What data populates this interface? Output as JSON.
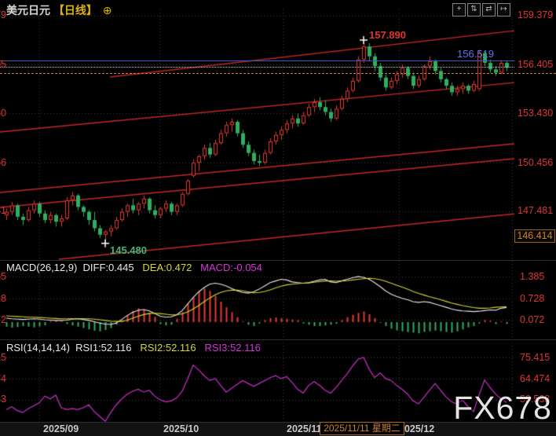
{
  "header": {
    "symbol": "美元日元",
    "period": "【日线】",
    "add_icon": "⊕"
  },
  "toolbar": {
    "icons": [
      {
        "name": "crosshair-icon",
        "glyph": "+"
      },
      {
        "name": "axis-zoom-vertical-icon",
        "glyph": "⇅"
      },
      {
        "name": "axis-zoom-horizontal-icon",
        "glyph": "⇄"
      },
      {
        "name": "go-to-latest-icon",
        "glyph": "↦"
      }
    ]
  },
  "price_pane": {
    "axis_labels": [
      "159.379",
      "156.405",
      "153.430",
      "150.456",
      "147.481"
    ],
    "bottom_axis_box": "146.414",
    "high_label": "157.890",
    "low_label": "145.480",
    "hline_label": "156.519"
  },
  "macd_pane": {
    "title": "MACD(26,12,9)",
    "diff_label": "DIFF:0.445",
    "dea_label": "DEA:0.472",
    "macd_label": "MACD:-0.054",
    "axis_labels": [
      "1.385",
      "0.728",
      "0.072"
    ]
  },
  "rsi_pane": {
    "title": "RSI(14,14,14)",
    "rsi1_label": "RSI1:52.116",
    "rsi2_label": "RSI2:52.116",
    "rsi3_label": "RSI3:52.116",
    "axis_labels": [
      "75.415",
      "64.474",
      "53.533"
    ]
  },
  "x_axis": {
    "labels": [
      "2025/09",
      "2025/10",
      "2025/11",
      "2025/12"
    ],
    "date_box": "2025/11/11 星期二"
  },
  "watermark": "FX678",
  "colors": {
    "up": "#e33b32",
    "down": "#2fae60",
    "trendline": "#c92727",
    "axis_text": "#e03434",
    "hline_blue": "#3a57cc",
    "current_orange": "#cd7f28",
    "diff_line": "#e8e8e8",
    "dea_line": "#d6d631",
    "rsi_line": "#cf2ecf"
  },
  "chart_data": [
    {
      "type": "candlestick",
      "symbol": "USD/JPY",
      "interval": "daily",
      "x_month_labels": [
        "2025/09",
        "2025/10",
        "2025/11",
        "2025/12"
      ],
      "high_annotation": 157.89,
      "low_annotation": 145.48,
      "horizontal_line": 156.519,
      "axis_values": [
        159.379,
        156.405,
        153.43,
        150.456,
        147.481,
        146.414
      ],
      "ohlc": [
        [
          147.2,
          147.6,
          146.9,
          147.4
        ],
        [
          147.4,
          148.0,
          147.2,
          147.8
        ],
        [
          147.8,
          147.9,
          146.9,
          147.1
        ],
        [
          147.1,
          147.3,
          146.6,
          146.9
        ],
        [
          146.9,
          147.7,
          146.8,
          147.5
        ],
        [
          147.5,
          148.1,
          147.3,
          147.9
        ],
        [
          147.9,
          148.0,
          147.1,
          147.3
        ],
        [
          147.3,
          147.5,
          146.7,
          146.9
        ],
        [
          146.9,
          147.4,
          146.7,
          147.2
        ],
        [
          147.2,
          147.3,
          146.5,
          146.8
        ],
        [
          146.8,
          147.2,
          146.5,
          147.0
        ],
        [
          147.0,
          148.3,
          146.9,
          148.1
        ],
        [
          148.1,
          148.6,
          147.8,
          148.4
        ],
        [
          148.4,
          148.5,
          147.5,
          147.7
        ],
        [
          147.7,
          147.8,
          147.1,
          147.4
        ],
        [
          147.4,
          147.5,
          146.6,
          146.9
        ],
        [
          146.9,
          147.4,
          146.2,
          146.4
        ],
        [
          146.4,
          146.6,
          145.8,
          146.0
        ],
        [
          146.0,
          146.3,
          145.48,
          146.2
        ],
        [
          146.2,
          146.6,
          145.9,
          146.4
        ],
        [
          146.4,
          147.1,
          146.3,
          146.9
        ],
        [
          146.9,
          147.6,
          146.8,
          147.4
        ],
        [
          147.4,
          147.9,
          147.1,
          147.8
        ],
        [
          147.8,
          148.2,
          147.3,
          147.5
        ],
        [
          147.5,
          148.0,
          147.2,
          147.9
        ],
        [
          147.9,
          148.4,
          147.6,
          148.2
        ],
        [
          148.2,
          148.3,
          147.3,
          147.5
        ],
        [
          147.5,
          147.8,
          147.0,
          147.2
        ],
        [
          147.2,
          147.7,
          147.0,
          147.6
        ],
        [
          147.6,
          148.1,
          147.4,
          147.9
        ],
        [
          147.9,
          148.0,
          147.2,
          147.4
        ],
        [
          147.4,
          147.9,
          147.2,
          147.8
        ],
        [
          147.8,
          148.6,
          147.7,
          148.5
        ],
        [
          148.5,
          149.4,
          148.4,
          149.3
        ],
        [
          149.6,
          150.6,
          149.5,
          150.4
        ],
        [
          150.4,
          150.9,
          149.9,
          150.8
        ],
        [
          150.8,
          151.5,
          150.6,
          151.3
        ],
        [
          151.3,
          151.6,
          150.7,
          150.9
        ],
        [
          150.9,
          151.8,
          150.8,
          151.6
        ],
        [
          151.6,
          152.4,
          151.5,
          152.2
        ],
        [
          152.2,
          152.9,
          152.0,
          152.7
        ],
        [
          152.7,
          153.1,
          152.3,
          152.9
        ],
        [
          152.9,
          153.0,
          152.0,
          152.2
        ],
        [
          152.2,
          152.4,
          151.3,
          151.5
        ],
        [
          151.5,
          151.7,
          150.8,
          151.0
        ],
        [
          151.0,
          151.2,
          150.3,
          150.5
        ],
        [
          150.5,
          150.9,
          150.2,
          150.4
        ],
        [
          150.4,
          151.2,
          150.3,
          151.0
        ],
        [
          151.0,
          151.9,
          150.9,
          151.7
        ],
        [
          151.7,
          152.3,
          151.5,
          152.1
        ],
        [
          152.1,
          152.6,
          151.8,
          152.4
        ],
        [
          152.4,
          153.0,
          152.2,
          152.8
        ],
        [
          152.8,
          153.3,
          152.5,
          153.1
        ],
        [
          153.1,
          153.4,
          152.6,
          152.8
        ],
        [
          152.8,
          153.5,
          152.7,
          153.3
        ],
        [
          153.3,
          154.0,
          153.2,
          153.8
        ],
        [
          153.8,
          154.3,
          153.5,
          154.1
        ],
        [
          154.1,
          154.4,
          153.6,
          153.8
        ],
        [
          153.8,
          154.2,
          153.3,
          153.5
        ],
        [
          153.5,
          153.7,
          152.9,
          153.1
        ],
        [
          153.1,
          153.9,
          153.0,
          153.7
        ],
        [
          153.7,
          154.5,
          153.6,
          154.3
        ],
        [
          154.3,
          155.0,
          154.1,
          154.8
        ],
        [
          154.8,
          155.6,
          154.7,
          155.4
        ],
        [
          155.4,
          156.9,
          155.3,
          156.7
        ],
        [
          156.7,
          157.89,
          156.5,
          157.5
        ],
        [
          157.5,
          157.7,
          156.6,
          156.9
        ],
        [
          156.9,
          157.1,
          156.0,
          156.3
        ],
        [
          156.3,
          156.5,
          155.4,
          155.6
        ],
        [
          155.6,
          155.8,
          154.8,
          155.0
        ],
        [
          155.0,
          155.6,
          154.9,
          155.4
        ],
        [
          155.4,
          156.0,
          155.2,
          155.8
        ],
        [
          155.8,
          156.4,
          155.6,
          156.2
        ],
        [
          156.2,
          156.3,
          155.5,
          155.7
        ],
        [
          155.7,
          155.9,
          154.9,
          155.1
        ],
        [
          155.1,
          155.7,
          155.0,
          155.5
        ],
        [
          155.5,
          156.4,
          155.4,
          156.3
        ],
        [
          156.3,
          156.9,
          156.1,
          156.6
        ],
        [
          156.6,
          156.7,
          155.8,
          156.0
        ],
        [
          156.0,
          156.2,
          155.3,
          155.5
        ],
        [
          155.5,
          155.6,
          154.9,
          155.1
        ],
        [
          155.1,
          155.3,
          154.5,
          154.7
        ],
        [
          154.7,
          155.1,
          154.5,
          154.9
        ],
        [
          154.9,
          155.3,
          154.6,
          155.1
        ],
        [
          155.1,
          155.2,
          154.6,
          154.8
        ],
        [
          154.8,
          155.4,
          154.7,
          155.2
        ],
        [
          154.9,
          157.3,
          154.8,
          157.1
        ],
        [
          157.1,
          157.2,
          156.3,
          156.5
        ],
        [
          156.5,
          156.7,
          155.9,
          156.1
        ],
        [
          156.1,
          156.3,
          155.7,
          155.9
        ],
        [
          155.9,
          156.6,
          155.8,
          156.5
        ],
        [
          156.5,
          156.6,
          156.0,
          156.2
        ]
      ]
    },
    {
      "type": "macd",
      "params": [
        26,
        12,
        9
      ],
      "last": {
        "diff": 0.445,
        "dea": 0.472,
        "macd": -0.054
      },
      "axis_values": [
        1.385,
        0.728,
        0.072
      ],
      "diff": [
        0.12,
        0.1,
        0.09,
        0.08,
        0.09,
        0.1,
        0.09,
        0.07,
        0.06,
        0.05,
        0.05,
        0.06,
        0.09,
        0.1,
        0.08,
        0.05,
        0.01,
        -0.03,
        -0.06,
        -0.07,
        -0.03,
        0.08,
        0.2,
        0.3,
        0.36,
        0.38,
        0.34,
        0.26,
        0.18,
        0.15,
        0.16,
        0.22,
        0.35,
        0.55,
        0.75,
        0.92,
        1.05,
        1.15,
        1.18,
        1.15,
        1.1,
        1.02,
        0.95,
        0.9,
        0.88,
        0.92,
        1.0,
        1.1,
        1.2,
        1.25,
        1.3,
        1.28,
        1.22,
        1.2,
        1.18,
        1.2,
        1.24,
        1.28,
        1.3,
        1.22,
        1.2,
        1.25,
        1.3,
        1.35,
        1.38,
        1.36,
        1.3,
        1.2,
        1.08,
        0.95,
        0.85,
        0.78,
        0.72,
        0.68,
        0.62,
        0.6,
        0.62,
        0.6,
        0.55,
        0.5,
        0.45,
        0.4,
        0.36,
        0.34,
        0.33,
        0.32,
        0.33,
        0.35,
        0.37,
        0.36,
        0.42,
        0.445
      ],
      "dea": [
        0.19,
        0.18,
        0.17,
        0.16,
        0.15,
        0.15,
        0.14,
        0.13,
        0.12,
        0.11,
        0.1,
        0.1,
        0.1,
        0.1,
        0.1,
        0.1,
        0.09,
        0.07,
        0.05,
        0.03,
        0.02,
        0.02,
        0.06,
        0.12,
        0.18,
        0.23,
        0.26,
        0.27,
        0.26,
        0.24,
        0.22,
        0.22,
        0.25,
        0.31,
        0.4,
        0.5,
        0.62,
        0.73,
        0.83,
        0.9,
        0.95,
        0.97,
        0.97,
        0.95,
        0.92,
        0.89,
        0.9,
        0.93,
        0.98,
        1.04,
        1.09,
        1.13,
        1.15,
        1.17,
        1.18,
        1.19,
        1.21,
        1.23,
        1.25,
        1.25,
        1.24,
        1.25,
        1.26,
        1.28,
        1.3,
        1.32,
        1.33,
        1.32,
        1.29,
        1.24,
        1.18,
        1.12,
        1.06,
        1.0,
        0.93,
        0.87,
        0.82,
        0.77,
        0.73,
        0.68,
        0.63,
        0.58,
        0.54,
        0.5,
        0.47,
        0.44,
        0.42,
        0.42,
        0.43,
        0.45,
        0.46,
        0.472
      ],
      "hist": [
        -0.14,
        -0.17,
        -0.15,
        -0.12,
        -0.14,
        -0.16,
        -0.13,
        -0.1,
        0.03,
        0.04,
        0.02,
        -0.06,
        -0.1,
        -0.14,
        -0.18,
        -0.22,
        -0.26,
        -0.28,
        -0.24,
        -0.18,
        -0.08,
        0.06,
        0.2,
        0.34,
        0.42,
        0.38,
        0.28,
        0.16,
        -0.06,
        -0.1,
        -0.08,
        0.1,
        0.3,
        0.55,
        0.75,
        0.92,
        1.02,
        0.95,
        0.8,
        0.62,
        0.45,
        0.3,
        0.15,
        0.02,
        -0.08,
        -0.12,
        -0.04,
        0.06,
        0.12,
        0.14,
        0.12,
        0.1,
        0.08,
        0.06,
        -0.04,
        -0.08,
        -0.12,
        -0.12,
        -0.1,
        -0.08,
        -0.05,
        0.06,
        0.15,
        0.22,
        0.28,
        0.32,
        0.24,
        0.12,
        -0.02,
        -0.12,
        -0.2,
        -0.25,
        -0.28,
        -0.3,
        -0.32,
        -0.34,
        -0.3,
        -0.28,
        -0.26,
        -0.28,
        -0.3,
        -0.32,
        -0.28,
        -0.22,
        -0.16,
        -0.12,
        -0.04,
        0.06,
        0.04,
        -0.06,
        0.02,
        -0.054
      ]
    },
    {
      "type": "rsi",
      "params": [
        14,
        14,
        14
      ],
      "last": 52.116,
      "axis_values": [
        75.415,
        64.474,
        53.533
      ],
      "values": [
        48.5,
        50.0,
        48.0,
        47.0,
        49.0,
        50.5,
        52.0,
        55.5,
        54.0,
        56.0,
        49.5,
        48.5,
        49.0,
        48.5,
        49.5,
        51.0,
        47.5,
        45.0,
        42.5,
        47.0,
        51.0,
        54.0,
        56.5,
        58.0,
        59.0,
        57.5,
        58.5,
        55.5,
        53.5,
        52.5,
        53.0,
        54.5,
        58.0,
        64.5,
        71.5,
        69.0,
        66.0,
        63.5,
        64.5,
        61.0,
        57.5,
        59.5,
        61.5,
        63.5,
        62.0,
        60.5,
        62.0,
        63.5,
        65.0,
        66.0,
        64.5,
        65.5,
        62.5,
        59.0,
        57.0,
        61.0,
        63.0,
        61.0,
        58.5,
        57.0,
        60.0,
        63.5,
        67.0,
        71.0,
        74.5,
        75.4,
        69.5,
        65.0,
        67.5,
        64.5,
        63.5,
        61.0,
        59.0,
        56.5,
        53.0,
        51.5,
        55.0,
        58.5,
        62.0,
        58.5,
        55.0,
        52.5,
        51.5,
        53.5,
        50.0,
        47.5,
        56.0,
        63.8,
        60.0,
        56.5,
        54.0,
        52.116
      ]
    }
  ]
}
